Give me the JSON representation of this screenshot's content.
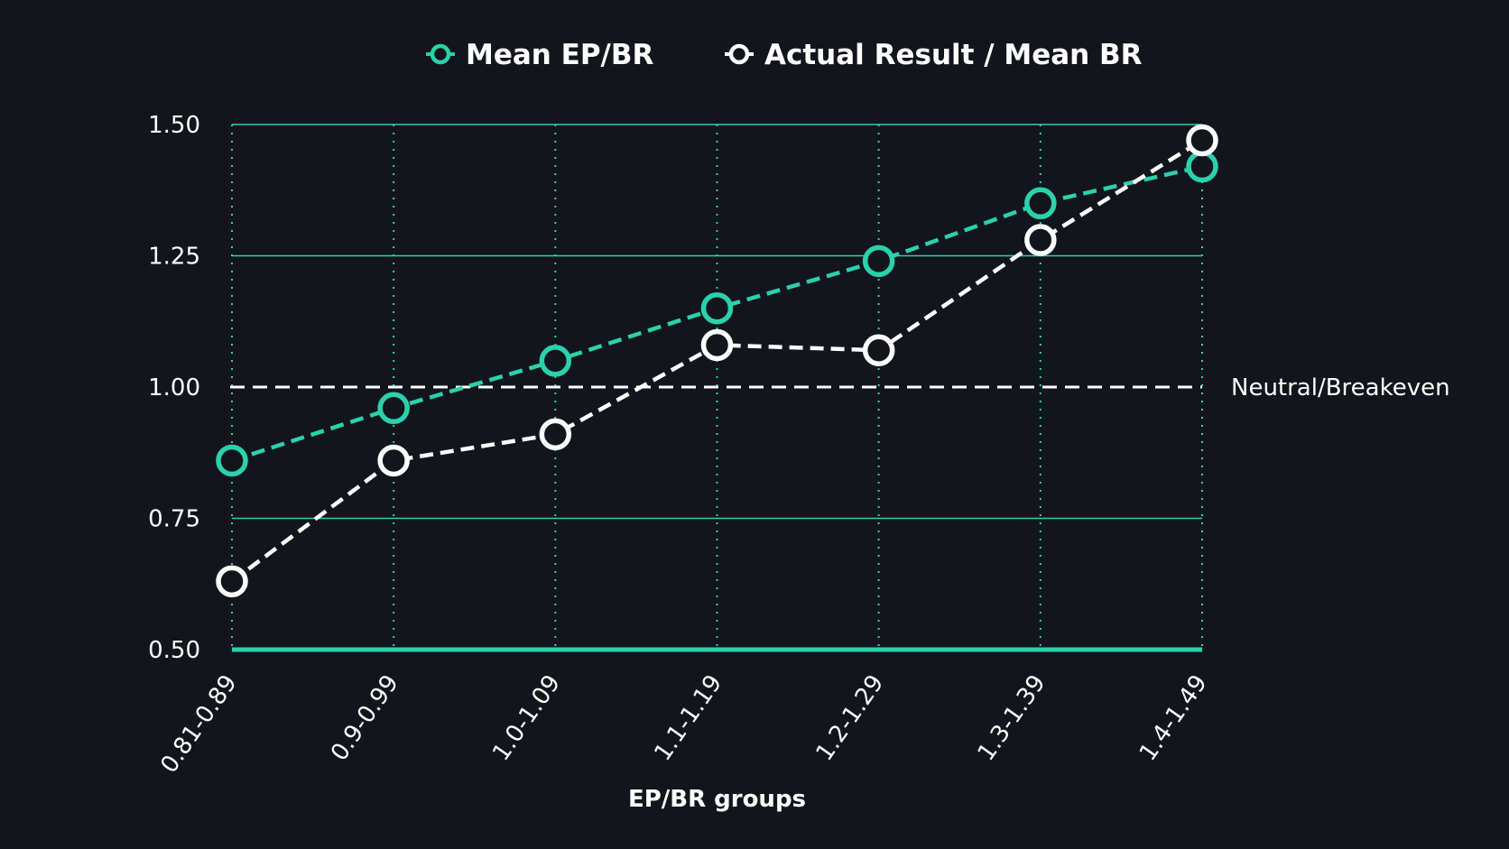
{
  "chart_data": {
    "type": "line",
    "xlabel": "EP/BR groups",
    "ylabel": "",
    "categories": [
      "0.81-0.89",
      "0.9-0.99",
      "1.0-1.09",
      "1.1-1.19",
      "1.2-1.29",
      "1.3-1.39",
      "1.4-1.49"
    ],
    "ylim": [
      0.5,
      1.5
    ],
    "yticks": [
      "0.50",
      "0.75",
      "1.00",
      "1.25",
      "1.50"
    ],
    "ytick_values": [
      0.5,
      0.75,
      1.0,
      1.25,
      1.5
    ],
    "grid": true,
    "legend_position": "top-center",
    "reference_line": {
      "value": 1.0,
      "label": "Neutral/Breakeven",
      "color": "#ffffff"
    },
    "series": [
      {
        "name": "Mean EP/BR",
        "color": "#2bd1ad",
        "values": [
          0.86,
          0.96,
          1.05,
          1.15,
          1.24,
          1.35,
          1.42
        ]
      },
      {
        "name": "Actual Result / Mean BR",
        "color": "#ffffff",
        "values": [
          0.63,
          0.86,
          0.91,
          1.08,
          1.07,
          1.28,
          1.47
        ]
      }
    ],
    "colors": {
      "background": "#12161c",
      "grid": "#2bd1ad",
      "text": "#ffffff"
    }
  }
}
